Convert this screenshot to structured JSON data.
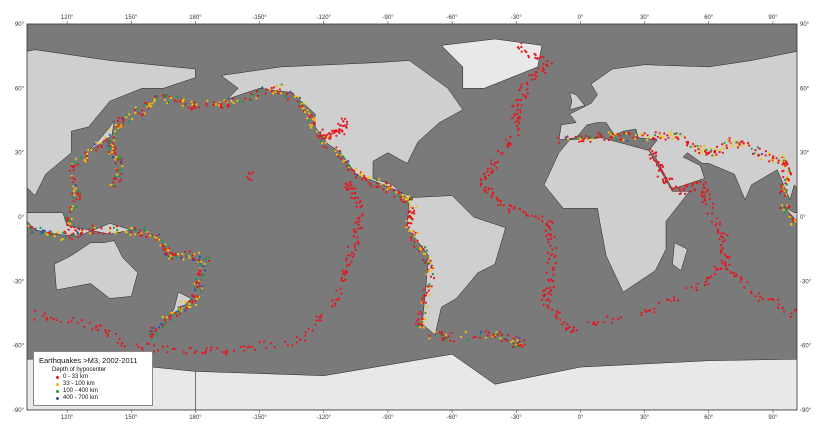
{
  "map": {
    "projection": "equirectangular",
    "lon_labels": [
      "120°",
      "150°",
      "180°",
      "-150°",
      "-120°",
      "-90°",
      "-60°",
      "-30°",
      "0°",
      "30°",
      "60°",
      "90°"
    ],
    "lon_values": [
      120,
      150,
      180,
      -150,
      -120,
      -90,
      -60,
      -30,
      0,
      30,
      60,
      90
    ],
    "lat_labels": [
      "90°",
      "60°",
      "30°",
      "0°",
      "-30°",
      "-60°",
      "-90°"
    ],
    "lat_values": [
      90,
      60,
      30,
      0,
      -30,
      -60,
      -90
    ],
    "colors": {
      "ocean": "#7a7a7a",
      "land": "#cfcfcf",
      "ice": "#e8e8e8",
      "coast": "#222222"
    }
  },
  "legend": {
    "title": "Earthquakes >M3, 2002-2011",
    "subtitle": "Depth of hypocenter",
    "items": [
      {
        "label": "0 - 33 km",
        "color": "#e8141e"
      },
      {
        "label": "33 - 100 km",
        "color": "#f5c400"
      },
      {
        "label": "100 - 400 km",
        "color": "#1a9a4a"
      },
      {
        "label": "400 - 700 km",
        "color": "#2a4fb0"
      }
    ]
  }
}
